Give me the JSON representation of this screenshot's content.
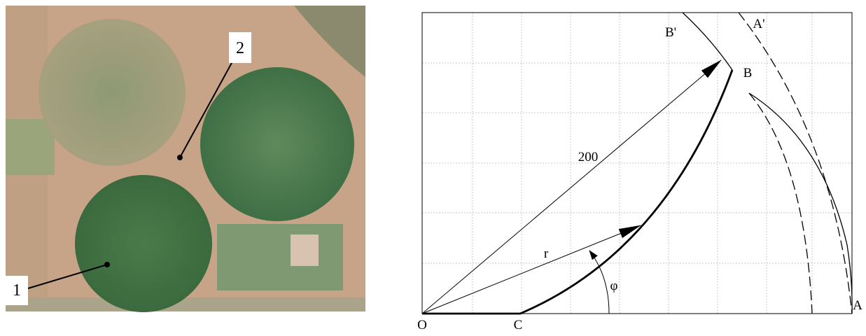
{
  "photo": {
    "labels": [
      "1",
      "2"
    ]
  },
  "diagram": {
    "points": {
      "O": "O",
      "C": "C",
      "A": "A",
      "B": "B",
      "B_prime": "B'",
      "A_prime": "A'"
    },
    "radius_label": "200",
    "r_label": "r",
    "angle_label": "φ"
  }
}
